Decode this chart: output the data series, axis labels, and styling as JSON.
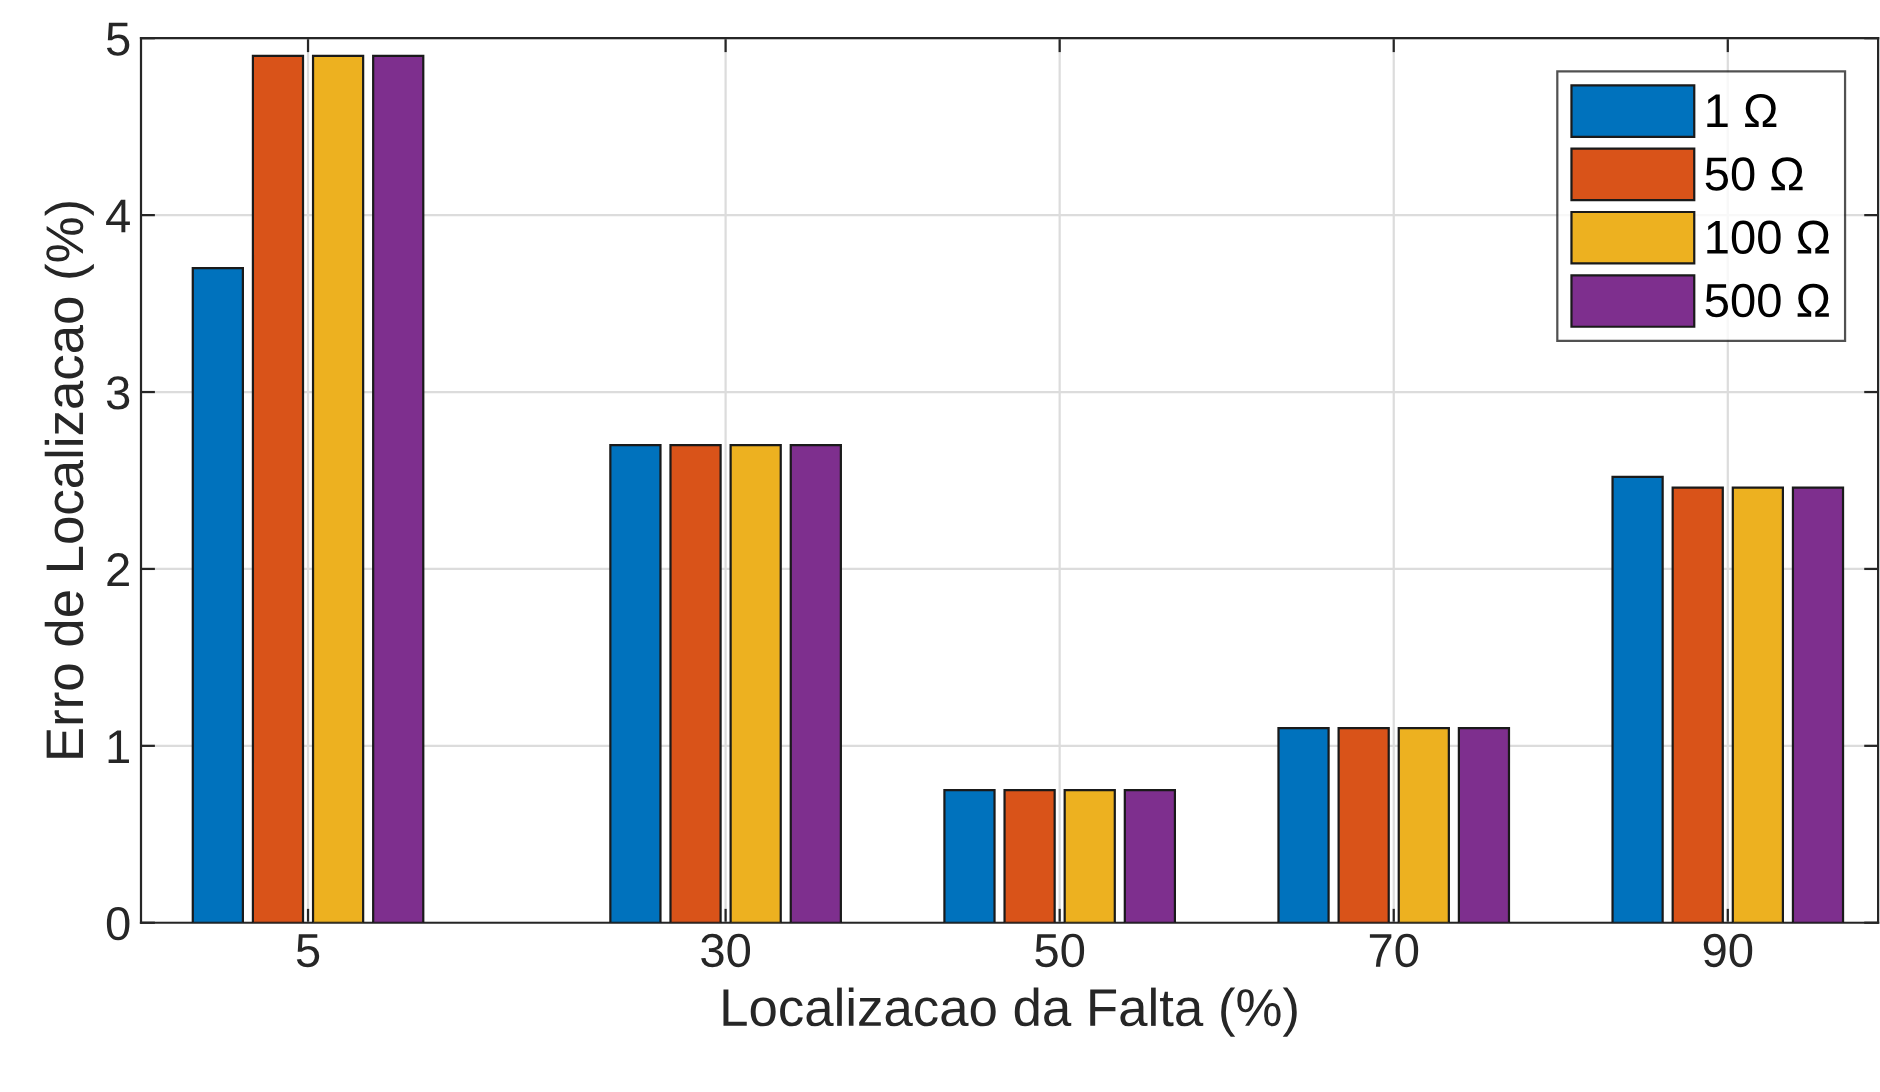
{
  "chart_data": {
    "type": "bar",
    "xlabel": "Localizacao da Falta (%)",
    "ylabel": "Erro de Localizacao (%)",
    "x": [
      5,
      30,
      50,
      70,
      90
    ],
    "series": [
      {
        "name": "1 Ω",
        "color": "#0072bd",
        "values": [
          3.7,
          2.7,
          0.75,
          1.1,
          2.52
        ]
      },
      {
        "name": "50 Ω",
        "color": "#d95319",
        "values": [
          4.9,
          2.7,
          0.75,
          1.1,
          2.46
        ]
      },
      {
        "name": "100 Ω",
        "color": "#edb120",
        "values": [
          4.9,
          2.7,
          0.75,
          1.1,
          2.46
        ]
      },
      {
        "name": "500 Ω",
        "color": "#7e2f8e",
        "values": [
          4.9,
          2.7,
          0.75,
          1.1,
          2.46
        ]
      }
    ],
    "xlim": [
      -5,
      99
    ],
    "xticks": [
      5,
      30,
      50,
      70,
      90
    ],
    "ylim": [
      0,
      5
    ],
    "yticks": [
      0,
      1,
      2,
      3,
      4,
      5
    ],
    "grid": true,
    "legend": "top right"
  }
}
